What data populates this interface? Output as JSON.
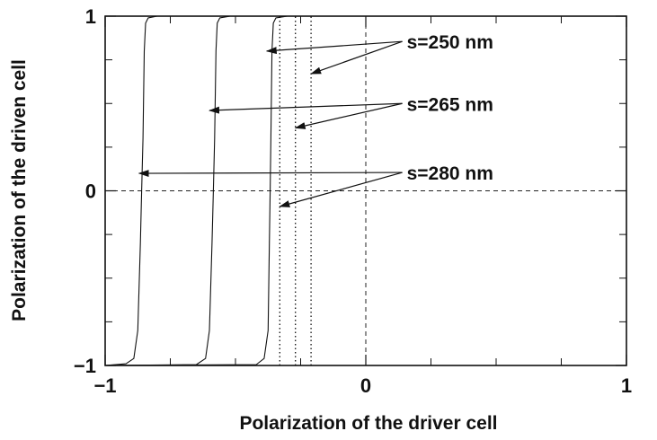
{
  "chart_data": {
    "type": "line",
    "xlabel": "Polarization of the driver cell",
    "ylabel": "Polarization of the driven cell",
    "xlim": [
      -1,
      1
    ],
    "ylim": [
      -1,
      1
    ],
    "x_ticks": [
      "−1",
      "0",
      "1"
    ],
    "y_ticks": [
      "−1",
      "0",
      "1"
    ],
    "grid": false,
    "reference_lines": {
      "x": 0,
      "y": 0,
      "style": "dashed"
    },
    "series": [
      {
        "label": "s=280 nm",
        "style": "solid",
        "x": [
          -1.0,
          -0.92,
          -0.89,
          -0.875,
          -0.865,
          -0.86,
          -0.855,
          -0.85,
          -0.845,
          -0.835,
          -0.8,
          -0.7,
          1.0
        ],
        "y": [
          -1.0,
          -0.99,
          -0.96,
          -0.8,
          -0.3,
          0.0,
          0.3,
          0.8,
          0.96,
          0.99,
          1.0,
          1.0,
          1.0
        ]
      },
      {
        "label": "s=265 nm",
        "style": "solid",
        "x": [
          -1.0,
          -0.65,
          -0.615,
          -0.6,
          -0.59,
          -0.585,
          -0.58,
          -0.575,
          -0.57,
          -0.56,
          -0.52,
          -0.45,
          1.0
        ],
        "y": [
          -1.0,
          -0.995,
          -0.96,
          -0.8,
          -0.3,
          0.0,
          0.3,
          0.8,
          0.96,
          0.99,
          1.0,
          1.0,
          1.0
        ]
      },
      {
        "label": "s=250 nm",
        "style": "solid",
        "x": [
          -1.0,
          -0.42,
          -0.39,
          -0.375,
          -0.37,
          -0.367,
          -0.364,
          -0.36,
          -0.355,
          -0.345,
          -0.3,
          1.0
        ],
        "y": [
          -1.0,
          -0.995,
          -0.96,
          -0.8,
          -0.3,
          0.0,
          0.3,
          0.8,
          0.96,
          0.99,
          1.0,
          1.0
        ]
      },
      {
        "label": "s=280 nm",
        "style": "dotted",
        "x": [
          -0.33,
          -0.33
        ],
        "y": [
          -1.0,
          1.0
        ]
      },
      {
        "label": "s=265 nm",
        "style": "dotted",
        "x": [
          -0.27,
          -0.27
        ],
        "y": [
          -1.0,
          1.0
        ]
      },
      {
        "label": "s=250 nm",
        "style": "dotted",
        "x": [
          -0.21,
          -0.21
        ],
        "y": [
          -1.0,
          1.0
        ]
      }
    ],
    "annotations": [
      {
        "text": "s=250 nm",
        "arrows_to": [
          [
            -0.38,
            0.8
          ],
          [
            -0.21,
            0.67
          ]
        ]
      },
      {
        "text": "s=265 nm",
        "arrows_to": [
          [
            -0.6,
            0.46
          ],
          [
            -0.27,
            0.36
          ]
        ]
      },
      {
        "text": "s=280 nm",
        "arrows_to": [
          [
            -0.87,
            0.1
          ],
          [
            -0.33,
            -0.09
          ]
        ]
      }
    ]
  }
}
